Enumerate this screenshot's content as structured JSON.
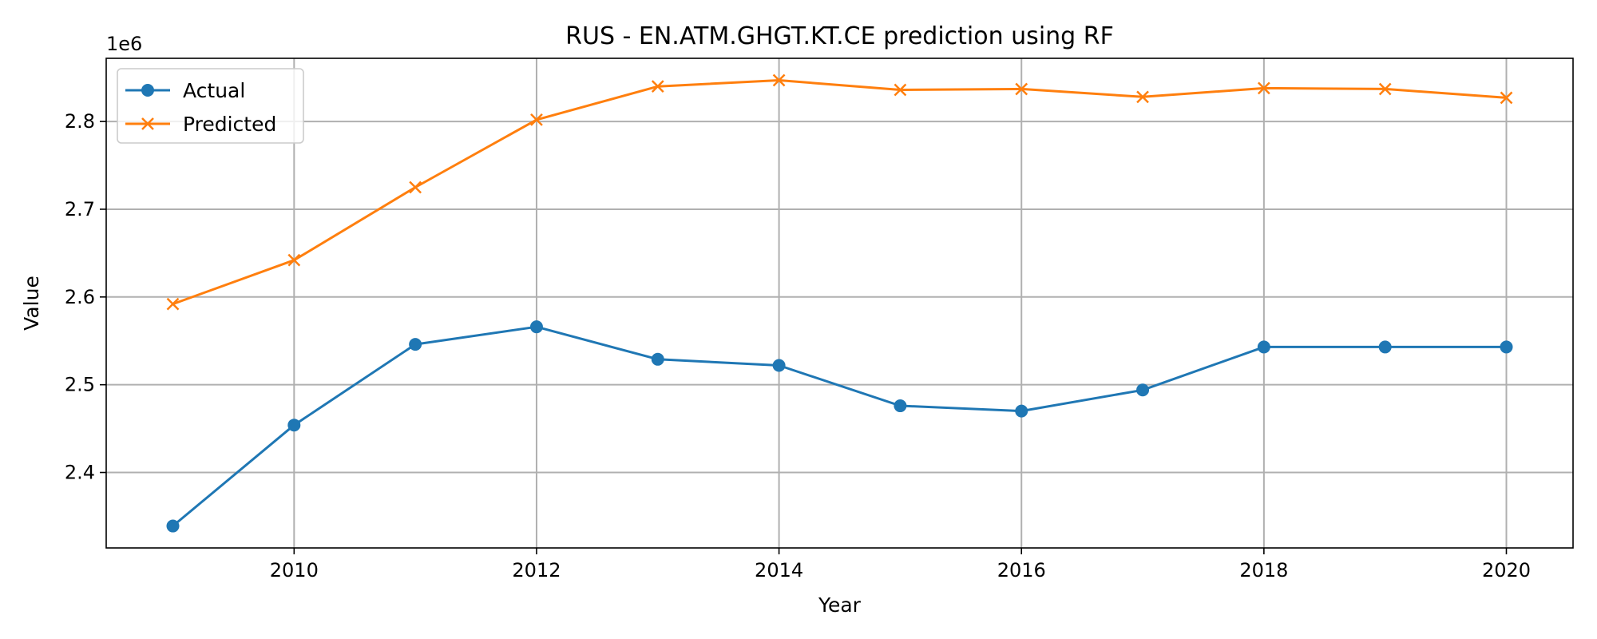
{
  "chart_data": {
    "type": "line",
    "title": "RUS - EN.ATM.GHGT.KT.CE prediction using RF",
    "xlabel": "Year",
    "ylabel": "Value",
    "y_offset_label": "1e6",
    "x": [
      2009,
      2010,
      2011,
      2012,
      2013,
      2014,
      2015,
      2016,
      2017,
      2018,
      2019,
      2020
    ],
    "x_ticks": [
      2010,
      2012,
      2014,
      2016,
      2018,
      2020
    ],
    "y_ticks": [
      2.4,
      2.5,
      2.6,
      2.7,
      2.8
    ],
    "y_tick_labels": [
      "2.4",
      "2.5",
      "2.6",
      "2.7",
      "2.8"
    ],
    "xlim": [
      2008.45,
      2020.55
    ],
    "ylim": [
      2.314,
      2.872
    ],
    "grid": true,
    "legend_position": "upper-left",
    "series": [
      {
        "name": "Actual",
        "color": "#1f77b4",
        "marker": "circle",
        "values": [
          2.339,
          2.454,
          2.546,
          2.566,
          2.529,
          2.522,
          2.476,
          2.47,
          2.494,
          2.543,
          2.543,
          2.543
        ]
      },
      {
        "name": "Predicted",
        "color": "#ff7f0e",
        "marker": "x",
        "values": [
          2.592,
          2.642,
          2.725,
          2.802,
          2.84,
          2.847,
          2.836,
          2.837,
          2.828,
          2.838,
          2.837,
          2.827
        ]
      }
    ]
  }
}
